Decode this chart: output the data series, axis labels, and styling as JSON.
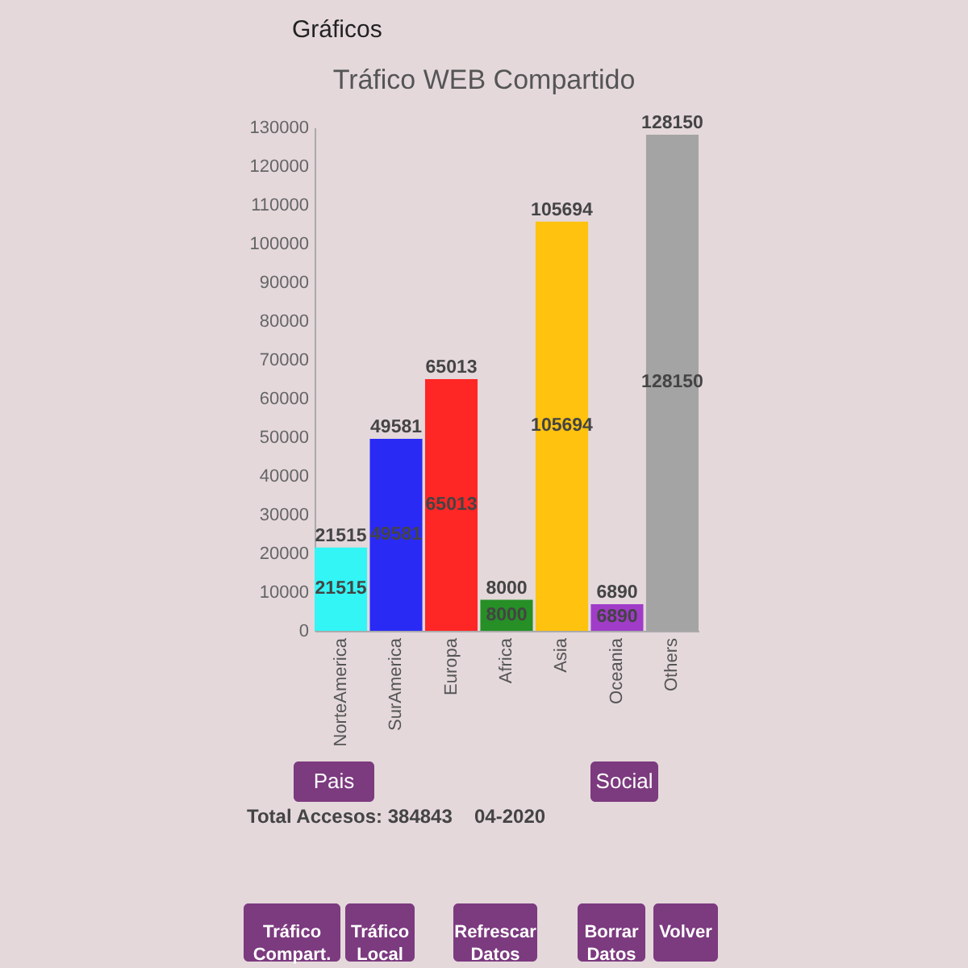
{
  "chart_data": {
    "type": "bar",
    "title": "Tráfico WEB Compartido",
    "categories": [
      "NorteAmerica",
      "SurAmerica",
      "Europa",
      "Africa",
      "Asia",
      "Oceania",
      "Others"
    ],
    "values": [
      21515,
      49581,
      65013,
      8000,
      105694,
      6890,
      128150
    ],
    "colors": [
      "#33f5f5",
      "#2a2af5",
      "#ff2626",
      "#268f26",
      "#ffc20f",
      "#a03cc8",
      "#a4a4a4"
    ],
    "ylim": [
      0,
      130000
    ],
    "yticks": [
      0,
      10000,
      20000,
      30000,
      40000,
      50000,
      60000,
      70000,
      80000,
      90000,
      100000,
      110000,
      120000,
      130000
    ],
    "grid": false,
    "data_labels": true,
    "annotations": [
      "Gráficos",
      "Pais",
      "Social",
      "Total Accesos: 384843",
      "04-2020",
      "Tráfico Compart.",
      "Tráfico Local",
      "Refrescar Datos",
      "Borrar Datos",
      "Volver",
      "21515",
      "49581",
      "65013",
      "8000",
      "105694",
      "6890",
      "128150"
    ]
  }
}
